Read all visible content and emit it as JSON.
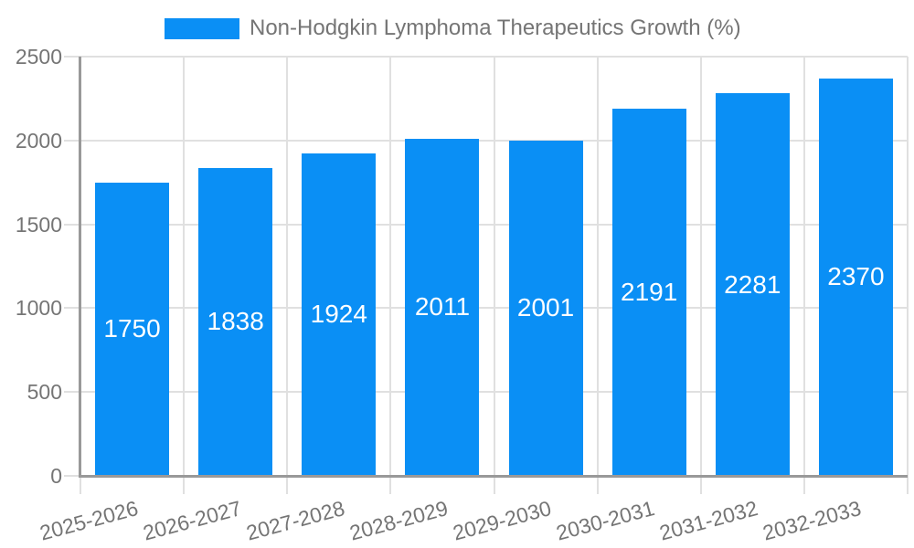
{
  "chart_data": {
    "type": "bar",
    "title": "Non-Hodgkin Lymphoma Therapeutics Growth (%)",
    "legend": "Non-Hodgkin Lymphoma Therapeutics Growth (%)",
    "legend_position": "top",
    "categories": [
      "2025-2026",
      "2026-2027",
      "2027-2028",
      "2028-2029",
      "2029-2030",
      "2030-2031",
      "2031-2032",
      "2032-2033"
    ],
    "values": [
      1750,
      1838,
      1924,
      2011,
      2001,
      2191,
      2281,
      2370
    ],
    "bar_value_labels": [
      "1750",
      "1838",
      "1924",
      "2011",
      "2001",
      "2191",
      "2281",
      "2370"
    ],
    "xlabel": "",
    "ylabel": "",
    "ylim": [
      0,
      2500
    ],
    "yticks": [
      0,
      500,
      1000,
      1500,
      2000,
      2500
    ],
    "ytick_labels": [
      "0",
      "500",
      "1000",
      "1500",
      "2000",
      "2500"
    ],
    "grid": true,
    "colors": {
      "bar": "#0A8FF5",
      "axis_text": "#757575",
      "bar_label_text": "#FFFFFF",
      "gridline": "#E0E0E0",
      "axis_line": "#999999"
    }
  }
}
